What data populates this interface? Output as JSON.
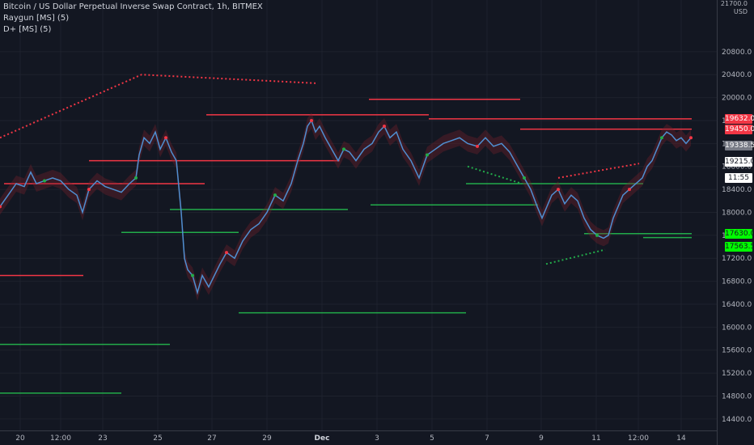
{
  "legend": {
    "title": "Bitcoin / US Dollar Perpetual Inverse Swap Contract, 1h, BITMEX",
    "ind1": "Raygun [MS] (5)",
    "ind2": "D+ [MS] (5)"
  },
  "axis_header": {
    "line1": "21700.0",
    "line2": "USD"
  },
  "price_labels": [
    {
      "text": "19632.0",
      "bg": "#f23645",
      "fg": "#ffffff",
      "value": 19632
    },
    {
      "text": "19450.0",
      "bg": "#f23645",
      "fg": "#ffffff",
      "value": 19450
    },
    {
      "text": "19338.5",
      "bg": "#787b86",
      "fg": "#ffffff",
      "value": 19338.5
    },
    {
      "text": "19215.0",
      "bg": "#ffffff",
      "fg": "#131722",
      "value": 19215
    },
    {
      "text": "11:55",
      "bg": "#ffffff",
      "fg": "#131722",
      "value": 19100
    },
    {
      "text": "17630.0",
      "bg": "#00ff00",
      "fg": "#131722",
      "value": 17630
    },
    {
      "text": "17563.5",
      "bg": "#00ff00",
      "fg": "#131722",
      "value": 17563.5
    }
  ],
  "colors": {
    "background": "#131722",
    "grid": "#1e222d",
    "price": "#4f8fd1",
    "bear": "#f23645",
    "bull": "#22ab4a",
    "bear_fill": "#7a1f2b",
    "bull_fill": "#1f5a2a"
  },
  "chart_data": {
    "type": "line",
    "ylim": [
      14200,
      21700
    ],
    "ytick_values": [
      14400,
      14800,
      15200,
      15600,
      16000,
      16400,
      16800,
      17200,
      17600,
      18000,
      18400,
      18800,
      19200,
      19600,
      20000,
      20400,
      20800
    ],
    "ytick_labels": [
      "14400.0",
      "14800.0",
      "15200.0",
      "15600.0",
      "16000.0",
      "16400.0",
      "16800.0",
      "17200.0",
      "17600.0",
      "18000.0",
      "18400.0",
      "18800.0",
      "19200.0",
      "19600.0",
      "20000.0",
      "20400.0",
      "20800.0"
    ],
    "x_range": [
      0,
      886
    ],
    "xtick_labels": [
      {
        "t": "20",
        "x": 25,
        "bold": false
      },
      {
        "t": "12:00",
        "x": 75,
        "bold": false
      },
      {
        "t": "23",
        "x": 127,
        "bold": false
      },
      {
        "t": "25",
        "x": 195,
        "bold": false
      },
      {
        "t": "27",
        "x": 262,
        "bold": false
      },
      {
        "t": "29",
        "x": 330,
        "bold": false
      },
      {
        "t": "Dec",
        "x": 398,
        "bold": true
      },
      {
        "t": "3",
        "x": 466,
        "bold": false
      },
      {
        "t": "5",
        "x": 534,
        "bold": false
      },
      {
        "t": "7",
        "x": 602,
        "bold": false
      },
      {
        "t": "9",
        "x": 669,
        "bold": false
      },
      {
        "t": "11",
        "x": 737,
        "bold": false
      },
      {
        "t": "12:00",
        "x": 789,
        "bold": false
      },
      {
        "t": "14",
        "x": 842,
        "bold": false
      }
    ],
    "series": [
      {
        "x": [
          0,
          10,
          20,
          30,
          38,
          45,
          55,
          65,
          75,
          85,
          95,
          102,
          110,
          120,
          130,
          140,
          150,
          160,
          168,
          172,
          178,
          185,
          192,
          198,
          205,
          212,
          218,
          224,
          228,
          232,
          238,
          244,
          250,
          258,
          265,
          272,
          280,
          290,
          300,
          310,
          320,
          330,
          340,
          350,
          360,
          368,
          375,
          380,
          385,
          390,
          395,
          402,
          410,
          418,
          425,
          432,
          440,
          450,
          460,
          468,
          475,
          482,
          490,
          498,
          508,
          518,
          528,
          538,
          548,
          558,
          568,
          578,
          590,
          600,
          610,
          620,
          630,
          640,
          648,
          656,
          664,
          670,
          676,
          682,
          690,
          698,
          706,
          714,
          722,
          730,
          738,
          746,
          752,
          758,
          764,
          770,
          778,
          786,
          794,
          800,
          806,
          812,
          818,
          824,
          830,
          836,
          842,
          848,
          854
        ],
        "y": [
          18100,
          18300,
          18500,
          18450,
          18700,
          18500,
          18550,
          18600,
          18550,
          18400,
          18300,
          18000,
          18400,
          18550,
          18450,
          18400,
          18350,
          18500,
          18600,
          19000,
          19300,
          19200,
          19400,
          19100,
          19300,
          19050,
          18900,
          18000,
          17200,
          17000,
          16900,
          16600,
          16900,
          16700,
          16900,
          17100,
          17300,
          17200,
          17500,
          17700,
          17800,
          18000,
          18300,
          18200,
          18500,
          18900,
          19200,
          19500,
          19600,
          19400,
          19500,
          19300,
          19100,
          18900,
          19100,
          19050,
          18900,
          19100,
          19200,
          19400,
          19500,
          19300,
          19400,
          19100,
          18900,
          18600,
          19000,
          19100,
          19200,
          19250,
          19300,
          19200,
          19150,
          19300,
          19150,
          19200,
          19050,
          18800,
          18600,
          18400,
          18100,
          17900,
          18100,
          18300,
          18400,
          18150,
          18300,
          18200,
          17900,
          17700,
          17600,
          17550,
          17600,
          17900,
          18100,
          18300,
          18400,
          18500,
          18600,
          18800,
          18900,
          19100,
          19300,
          19400,
          19350,
          19250,
          19300,
          19200,
          19300
        ]
      }
    ],
    "levels": [
      {
        "v": 18500,
        "x0": 5,
        "x1": 253,
        "c": "#f23645"
      },
      {
        "v": 18900,
        "x0": 110,
        "x1": 420,
        "c": "#f23645"
      },
      {
        "v": 19700,
        "x0": 255,
        "x1": 530,
        "c": "#f23645"
      },
      {
        "v": 19970,
        "x0": 456,
        "x1": 643,
        "c": "#f23645"
      },
      {
        "v": 19630,
        "x0": 530,
        "x1": 855,
        "c": "#f23645"
      },
      {
        "v": 19450,
        "x0": 643,
        "x1": 855,
        "c": "#f23645"
      },
      {
        "v": 16900,
        "x0": 0,
        "x1": 103,
        "c": "#f23645"
      },
      {
        "v": 18050,
        "x0": 210,
        "x1": 430,
        "c": "#22ab4a"
      },
      {
        "v": 17650,
        "x0": 150,
        "x1": 295,
        "c": "#22ab4a"
      },
      {
        "v": 18130,
        "x0": 458,
        "x1": 665,
        "c": "#22ab4a"
      },
      {
        "v": 18500,
        "x0": 576,
        "x1": 795,
        "c": "#22ab4a"
      },
      {
        "v": 17630,
        "x0": 722,
        "x1": 855,
        "c": "#22ab4a"
      },
      {
        "v": 17560,
        "x0": 795,
        "x1": 855,
        "c": "#22ab4a"
      },
      {
        "v": 16250,
        "x0": 295,
        "x1": 576,
        "c": "#22ab4a"
      },
      {
        "v": 15700,
        "x0": 0,
        "x1": 210,
        "c": "#22ab4a"
      },
      {
        "v": 14850,
        "x0": 0,
        "x1": 150,
        "c": "#22ab4a"
      }
    ],
    "diverge": [
      {
        "pts": [
          [
            0,
            19300
          ],
          [
            175,
            20400
          ],
          [
            390,
            20250
          ]
        ],
        "c": "#f23645"
      },
      {
        "pts": [
          [
            578,
            18800
          ],
          [
            645,
            18500
          ]
        ],
        "c": "#22ab4a"
      },
      {
        "pts": [
          [
            675,
            17100
          ],
          [
            748,
            17350
          ]
        ],
        "c": "#22ab4a"
      },
      {
        "pts": [
          [
            690,
            18600
          ],
          [
            790,
            18850
          ]
        ],
        "c": "#f23645"
      }
    ]
  }
}
